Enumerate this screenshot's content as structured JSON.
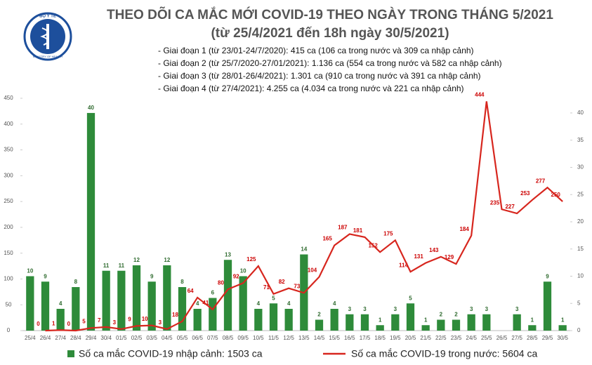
{
  "logo": {
    "top": "BỘ Y TẾ",
    "bottom": "MINISTRY OF HEALTH"
  },
  "chart_data": {
    "type": "bar-line",
    "title": "THEO DÕI CA MẮC MỚI COVID-19 THEO NGÀY TRONG THÁNG 5/2021",
    "subtitle": "(từ 25/4/2021 đến 18h ngày 30/5/2021)",
    "notes": [
      "- Giai đoạn 1 (từ 23/01-24/7/2020): 415 ca (106 ca trong nước và 309 ca nhập cảnh)",
      "- Giai đoạn 2 (từ 25/7/2020-27/01/2021): 1.136 ca (554 ca trong nước và 582 ca nhập cảnh)",
      "- Giai đoạn 3 (từ 28/01-26/4/2021): 1.301 ca (910 ca trong nước và 391 ca nhập cảnh)",
      "- Giai đoạn 4 (từ 27/4/2021): 4.255 ca (4.034 ca trong nước và 221 ca nhập cảnh)"
    ],
    "categories": [
      "25/4",
      "26/4",
      "27/4",
      "28/4",
      "29/4",
      "30/4",
      "01/5",
      "02/5",
      "03/5",
      "04/5",
      "05/5",
      "06/5",
      "07/5",
      "08/5",
      "09/5",
      "10/5",
      "11/5",
      "12/5",
      "13/5",
      "14/5",
      "15/5",
      "16/5",
      "17/5",
      "18/5",
      "19/5",
      "20/5",
      "21/5",
      "22/5",
      "23/5",
      "24/5",
      "25/5",
      "26/5",
      "27/5",
      "28/5",
      "29/5",
      "30/5"
    ],
    "series": [
      {
        "name": "Số ca mắc COVID-19 nhập cảnh: 1503 ca",
        "type": "bar",
        "axis": "y2",
        "color": "#2e8b3a",
        "values": [
          10,
          9,
          4,
          8,
          40,
          11,
          11,
          12,
          9,
          12,
          8,
          4,
          6,
          13,
          10,
          4,
          5,
          4,
          14,
          2,
          4,
          3,
          3,
          1,
          3,
          5,
          1,
          2,
          2,
          3,
          3,
          null,
          3,
          1,
          9,
          1
        ]
      },
      {
        "name": "Số ca mắc COVID-19 trong nước: 5604 ca",
        "type": "line",
        "color": "#d7261e",
        "values": [
          null,
          0,
          1,
          0,
          5,
          7,
          3,
          9,
          10,
          3,
          18,
          64,
          41,
          80,
          92,
          125,
          71,
          82,
          73,
          104,
          165,
          187,
          181,
          152,
          175,
          114,
          131,
          143,
          129,
          184,
          444,
          235,
          227,
          253,
          277,
          250
        ]
      }
    ],
    "ylim": [
      0,
      450
    ],
    "yticks": [
      0,
      50,
      100,
      150,
      200,
      250,
      300,
      350,
      400,
      450
    ],
    "y2lim": [
      0,
      42.7
    ],
    "y2ticks": [
      0,
      5,
      10,
      15,
      20,
      25,
      30,
      35,
      40
    ]
  }
}
